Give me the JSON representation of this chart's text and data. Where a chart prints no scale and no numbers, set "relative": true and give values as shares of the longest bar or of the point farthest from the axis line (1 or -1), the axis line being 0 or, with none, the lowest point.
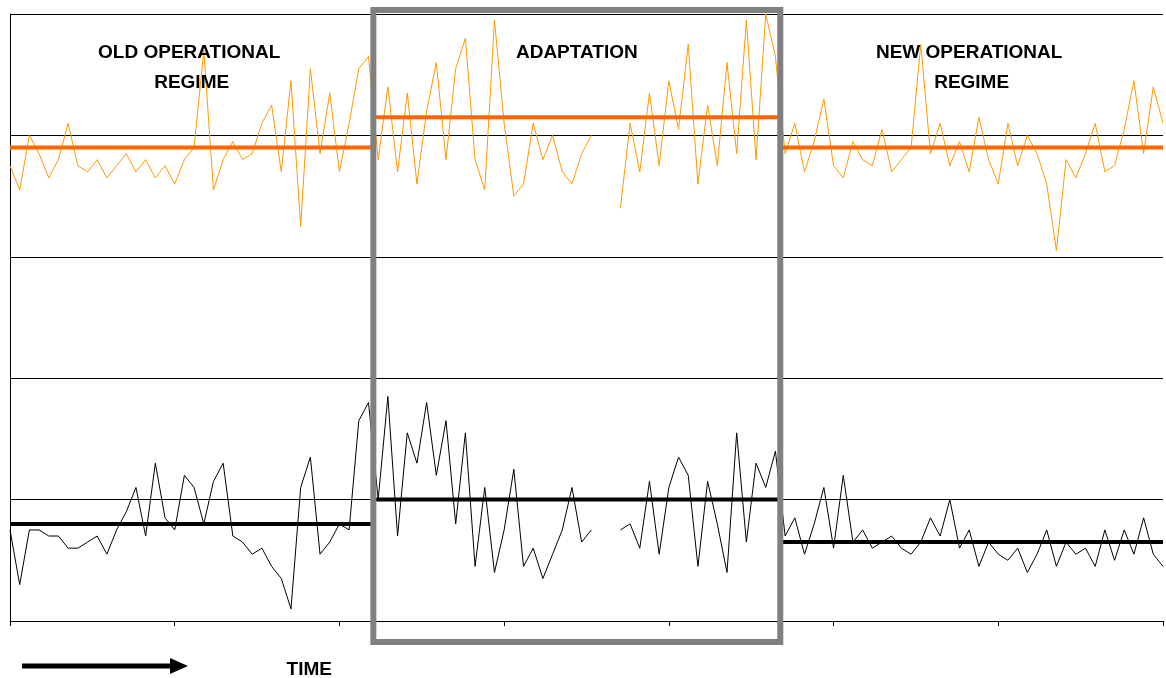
{
  "chart_data": {
    "type": "line",
    "relative": true,
    "xlabel": "TIME",
    "grid": "y",
    "marker": "none",
    "line_style": "solid",
    "categories": [
      null,
      null,
      null,
      null,
      null,
      null,
      null,
      null,
      null,
      null,
      null,
      null,
      null,
      null,
      null,
      null,
      null,
      null,
      null,
      null,
      null,
      null,
      null,
      null,
      null,
      null,
      null,
      null,
      null,
      null,
      null,
      null,
      null,
      null,
      null,
      null,
      null,
      null,
      null,
      null,
      null,
      null,
      null,
      null,
      null,
      null,
      null,
      null,
      null,
      null,
      null,
      null,
      null,
      null,
      null,
      null,
      null,
      null,
      null,
      null,
      null,
      null,
      null,
      null,
      null,
      null,
      null,
      null,
      null,
      null,
      null,
      null,
      null,
      null,
      null,
      null,
      null,
      null,
      null,
      null,
      null,
      null,
      null,
      null,
      null,
      null,
      null,
      null,
      null,
      null,
      null,
      null,
      null,
      null,
      null,
      null,
      null,
      null,
      null,
      null,
      null,
      null,
      null,
      null,
      null,
      null,
      null,
      null,
      null,
      null,
      null,
      null,
      null,
      null,
      null,
      null,
      null,
      null,
      null,
      null
    ],
    "series": [
      {
        "color": "#ff9900",
        "values": [
          0.75,
          0.71,
          0.8,
          0.77,
          0.73,
          0.76,
          0.82,
          0.75,
          0.74,
          0.76,
          0.73,
          0.75,
          0.77,
          0.74,
          0.76,
          0.73,
          0.75,
          0.72,
          0.76,
          0.78,
          0.94,
          0.71,
          0.76,
          0.79,
          0.76,
          0.77,
          0.82,
          0.85,
          0.74,
          0.89,
          0.65,
          0.91,
          0.77,
          0.87,
          0.74,
          0.82,
          0.91,
          0.93,
          0.76,
          0.88,
          0.74,
          0.87,
          0.72,
          0.84,
          0.92,
          0.76,
          0.91,
          0.96,
          0.76,
          0.71,
          0.99,
          0.82,
          0.7,
          0.72,
          0.82,
          0.76,
          0.8,
          0.74,
          0.72,
          0.77,
          0.8,
          null,
          null,
          0.68,
          0.82,
          0.74,
          0.87,
          0.75,
          0.89,
          0.81,
          0.95,
          0.72,
          0.85,
          0.75,
          0.92,
          0.77,
          0.99,
          0.76,
          1,
          0.93,
          0.77,
          0.82,
          0.74,
          0.79,
          0.86,
          0.75,
          0.73,
          0.79,
          0.76,
          0.75,
          0.81,
          0.74,
          0.76,
          0.78,
          0.95,
          0.77,
          0.82,
          0.75,
          0.79,
          0.74,
          0.83,
          0.76,
          0.72,
          0.82,
          0.75,
          0.8,
          0.77,
          0.72,
          0.61,
          0.76,
          0.73,
          0.77,
          0.82,
          0.74,
          0.75,
          0.81,
          0.89,
          0.77,
          0.88,
          0.82
        ]
      },
      {
        "color": "#000000",
        "values": [
          0.15,
          0.06,
          0.15,
          0.15,
          0.14,
          0.14,
          0.12,
          0.12,
          0.13,
          0.14,
          0.11,
          0.15,
          0.18,
          0.22,
          0.14,
          0.26,
          0.17,
          0.15,
          0.24,
          0.22,
          0.16,
          0.23,
          0.26,
          0.14,
          0.13,
          0.11,
          0.12,
          0.09,
          0.07,
          0.02,
          0.22,
          0.27,
          0.11,
          0.13,
          0.16,
          0.15,
          0.33,
          0.36,
          0.2,
          0.37,
          0.14,
          0.31,
          0.26,
          0.36,
          0.24,
          0.33,
          0.16,
          0.31,
          0.09,
          0.22,
          0.08,
          0.15,
          0.25,
          0.09,
          0.12,
          0.07,
          0.11,
          0.15,
          0.22,
          0.13,
          0.15,
          null,
          null,
          0.15,
          0.16,
          0.12,
          0.23,
          0.11,
          0.22,
          0.27,
          0.24,
          0.09,
          0.23,
          0.16,
          0.08,
          0.31,
          0.13,
          0.26,
          0.22,
          0.28,
          0.14,
          0.17,
          0.11,
          0.16,
          0.22,
          0.12,
          0.24,
          0.13,
          0.15,
          0.12,
          0.13,
          0.14,
          0.12,
          0.11,
          0.13,
          0.17,
          0.14,
          0.2,
          0.12,
          0.15,
          0.09,
          0.13,
          0.11,
          0.1,
          0.12,
          0.08,
          0.11,
          0.15,
          0.09,
          0.13,
          0.11,
          0.12,
          0.09,
          0.15,
          0.1,
          0.15,
          0.11,
          0.17,
          0.11,
          0.09
        ]
      },
      {
        "type": "step",
        "color": "#ff6600",
        "values": [
          0.78,
          0.78,
          0.78,
          0.78,
          0.78,
          0.78,
          0.78,
          0.78,
          0.78,
          0.78,
          0.78,
          0.78,
          0.78,
          0.78,
          0.78,
          0.78,
          0.78,
          0.78,
          0.78,
          0.78,
          0.78,
          0.78,
          0.78,
          0.78,
          0.78,
          0.78,
          0.78,
          0.78,
          0.78,
          0.78,
          0.78,
          0.78,
          0.78,
          0.78,
          0.78,
          0.78,
          0.78,
          0.78,
          0.83,
          0.83,
          0.83,
          0.83,
          0.83,
          0.83,
          0.83,
          0.83,
          0.83,
          0.83,
          0.83,
          0.83,
          0.83,
          0.83,
          0.83,
          0.83,
          0.83,
          0.83,
          0.83,
          0.83,
          0.83,
          0.83,
          0.83,
          0.83,
          0.83,
          0.83,
          0.83,
          0.83,
          0.83,
          0.83,
          0.83,
          0.83,
          0.83,
          0.83,
          0.83,
          0.83,
          0.83,
          0.83,
          0.83,
          0.83,
          0.83,
          0.83,
          0.78,
          0.78,
          0.78,
          0.78,
          0.78,
          0.78,
          0.78,
          0.78,
          0.78,
          0.78,
          0.78,
          0.78,
          0.78,
          0.78,
          0.78,
          0.78,
          0.78,
          0.78,
          0.78,
          0.78,
          0.78,
          0.78,
          0.78,
          0.78,
          0.78,
          0.78,
          0.78,
          0.78,
          0.78,
          0.78,
          0.78,
          0.78,
          0.78,
          0.78,
          0.78,
          0.78,
          0.78,
          0.78,
          0.78,
          0.78
        ]
      },
      {
        "type": "step",
        "color": "#000000",
        "values": [
          0.16,
          0.16,
          0.16,
          0.16,
          0.16,
          0.16,
          0.16,
          0.16,
          0.16,
          0.16,
          0.16,
          0.16,
          0.16,
          0.16,
          0.16,
          0.16,
          0.16,
          0.16,
          0.16,
          0.16,
          0.16,
          0.16,
          0.16,
          0.16,
          0.16,
          0.16,
          0.16,
          0.16,
          0.16,
          0.16,
          0.16,
          0.16,
          0.16,
          0.16,
          0.16,
          0.16,
          0.16,
          0.16,
          0.2,
          0.2,
          0.2,
          0.2,
          0.2,
          0.2,
          0.2,
          0.2,
          0.2,
          0.2,
          0.2,
          0.2,
          0.2,
          0.2,
          0.2,
          0.2,
          0.2,
          0.2,
          0.2,
          0.2,
          0.2,
          0.2,
          0.2,
          0.2,
          0.2,
          0.2,
          0.2,
          0.2,
          0.2,
          0.2,
          0.2,
          0.2,
          0.2,
          0.2,
          0.2,
          0.2,
          0.2,
          0.2,
          0.2,
          0.2,
          0.2,
          0.2,
          0.13,
          0.13,
          0.13,
          0.13,
          0.13,
          0.13,
          0.13,
          0.13,
          0.13,
          0.13,
          0.13,
          0.13,
          0.13,
          0.13,
          0.13,
          0.13,
          0.13,
          0.13,
          0.13,
          0.13,
          0.13,
          0.13,
          0.13,
          0.13,
          0.13,
          0.13,
          0.13,
          0.13,
          0.13,
          0.13,
          0.13,
          0.13,
          0.13,
          0.13,
          0.13,
          0.13,
          0.13,
          0.13,
          0.13,
          0.13
        ]
      }
    ],
    "annotations": [
      "OLD OPERATIONAL REGIME",
      "ADAPTATION",
      "NEW OPERATIONAL REGIME"
    ]
  }
}
